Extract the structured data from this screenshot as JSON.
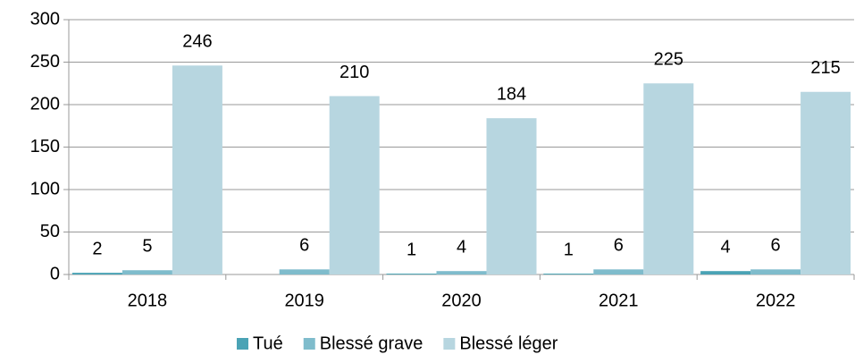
{
  "chart_data": {
    "type": "bar",
    "categories": [
      "2018",
      "2019",
      "2020",
      "2021",
      "2022"
    ],
    "series": [
      {
        "name": "Tué",
        "color": "#4aa3b5",
        "values": [
          2,
          null,
          1,
          1,
          4
        ]
      },
      {
        "name": "Blessé grave",
        "color": "#7fbccc",
        "values": [
          5,
          6,
          4,
          6,
          6
        ]
      },
      {
        "name": "Blessé léger",
        "color": "#b7d6e0",
        "values": [
          246,
          210,
          184,
          225,
          215
        ]
      }
    ],
    "ylim": [
      0,
      300
    ],
    "yticks": [
      0,
      50,
      100,
      150,
      200,
      250,
      300
    ],
    "grid": true,
    "legend": "bottom"
  }
}
